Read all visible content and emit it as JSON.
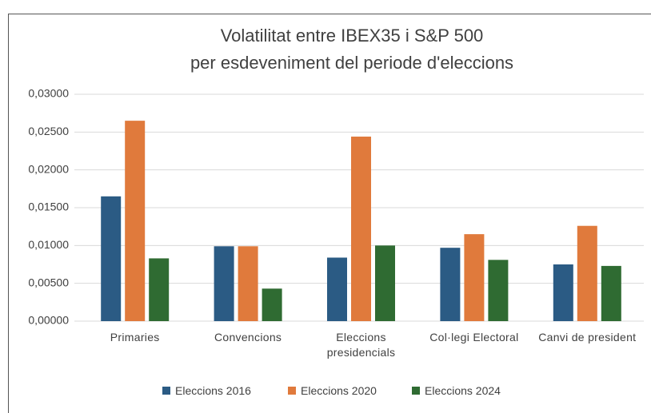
{
  "chart_data": {
    "type": "bar",
    "title": "Volatilitat entre IBEX35 i S&P 500",
    "subtitle": "per esdeveniment del periode d'eleccions",
    "categories": [
      "Primaries",
      "Convencions",
      "Eleccions presidencials",
      "Col·legi Electoral",
      "Canvi de president"
    ],
    "series": [
      {
        "name": "Eleccions 2016",
        "color": "#2b5b84",
        "values": [
          0.0165,
          0.0099,
          0.0084,
          0.0097,
          0.0075
        ]
      },
      {
        "name": "Eleccions 2020",
        "color": "#e07a3c",
        "values": [
          0.0265,
          0.0099,
          0.0244,
          0.0115,
          0.0126
        ]
      },
      {
        "name": "Eleccions 2024",
        "color": "#2f6b32",
        "values": [
          0.0083,
          0.0043,
          0.01,
          0.0081,
          0.0073
        ]
      }
    ],
    "ylim": [
      0,
      0.03
    ],
    "yticks": [
      {
        "value": 0,
        "label": "0,00000"
      },
      {
        "value": 0.005,
        "label": "0,00500"
      },
      {
        "value": 0.01,
        "label": "0,01000"
      },
      {
        "value": 0.015,
        "label": "0,01500"
      },
      {
        "value": 0.02,
        "label": "0,02000"
      },
      {
        "value": 0.025,
        "label": "0,02500"
      },
      {
        "value": 0.03,
        "label": "0,03000"
      }
    ],
    "grid": true,
    "legend": "bottom"
  }
}
